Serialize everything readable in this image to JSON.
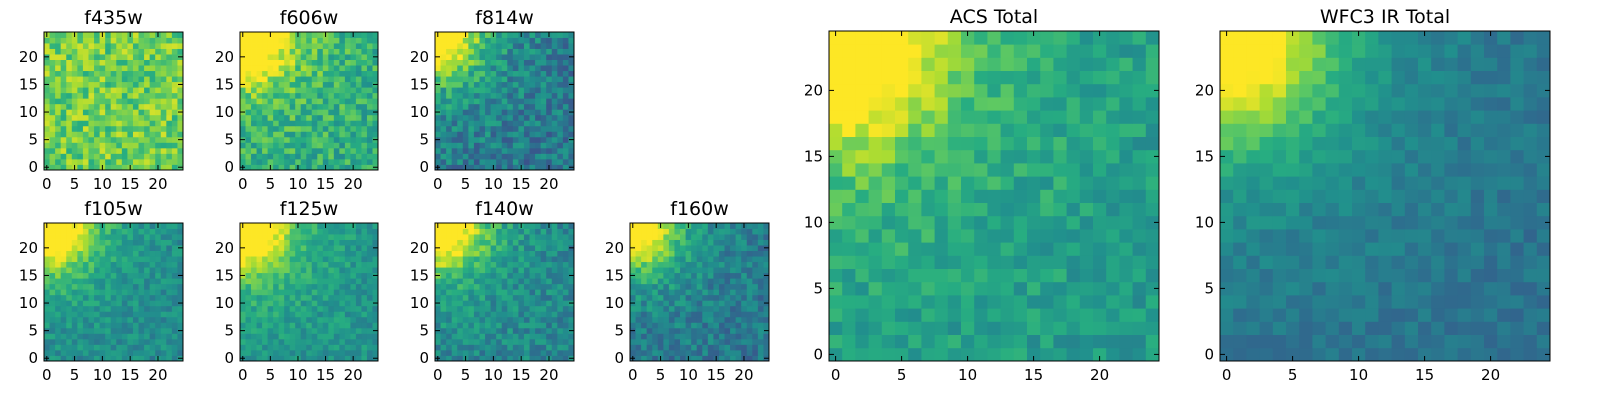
{
  "chart_data": [
    {
      "type": "heatmap",
      "title": "f435w",
      "xlim": [
        -0.5,
        24.5
      ],
      "ylim": [
        -0.5,
        24.5
      ],
      "xticks": [
        0,
        5,
        10,
        15,
        20
      ],
      "xtick_labels": [
        "0",
        "5",
        "10",
        "15",
        "20"
      ],
      "yticks": [
        0,
        5,
        10,
        15,
        20
      ],
      "ytick_labels": [
        "0",
        "5",
        "10",
        "15",
        "20"
      ],
      "grid_size": 25,
      "colormap": "viridis",
      "corner_peak": false,
      "mean": 0.78,
      "noise": 0.16,
      "seed": 11
    },
    {
      "type": "heatmap",
      "title": "f606w",
      "xlim": [
        -0.5,
        24.5
      ],
      "ylim": [
        -0.5,
        24.5
      ],
      "xticks": [
        0,
        5,
        10,
        15,
        20
      ],
      "xtick_labels": [
        "0",
        "5",
        "10",
        "15",
        "20"
      ],
      "yticks": [
        0,
        5,
        10,
        15,
        20
      ],
      "ytick_labels": [
        "0",
        "5",
        "10",
        "15",
        "20"
      ],
      "grid_size": 25,
      "colormap": "viridis",
      "corner_peak": true,
      "mean": 0.62,
      "noise": 0.15,
      "seed": 23
    },
    {
      "type": "heatmap",
      "title": "f814w",
      "xlim": [
        -0.5,
        24.5
      ],
      "ylim": [
        -0.5,
        24.5
      ],
      "xticks": [
        0,
        5,
        10,
        15,
        20
      ],
      "xtick_labels": [
        "0",
        "5",
        "10",
        "15",
        "20"
      ],
      "yticks": [
        0,
        5,
        10,
        15,
        20
      ],
      "ytick_labels": [
        "0",
        "5",
        "10",
        "15",
        "20"
      ],
      "grid_size": 25,
      "colormap": "viridis",
      "corner_peak": true,
      "mean": 0.4,
      "noise": 0.15,
      "seed": 37
    },
    {
      "type": "heatmap",
      "title": "f105w",
      "xlim": [
        -0.5,
        24.5
      ],
      "ylim": [
        -0.5,
        24.5
      ],
      "xticks": [
        0,
        5,
        10,
        15,
        20
      ],
      "xtick_labels": [
        "0",
        "5",
        "10",
        "15",
        "20"
      ],
      "yticks": [
        0,
        5,
        10,
        15,
        20
      ],
      "ytick_labels": [
        "0",
        "5",
        "10",
        "15",
        "20"
      ],
      "grid_size": 25,
      "colormap": "viridis",
      "corner_peak": true,
      "mean": 0.48,
      "noise": 0.1,
      "seed": 41
    },
    {
      "type": "heatmap",
      "title": "f125w",
      "xlim": [
        -0.5,
        24.5
      ],
      "ylim": [
        -0.5,
        24.5
      ],
      "xticks": [
        0,
        5,
        10,
        15,
        20
      ],
      "xtick_labels": [
        "0",
        "5",
        "10",
        "15",
        "20"
      ],
      "yticks": [
        0,
        5,
        10,
        15,
        20
      ],
      "ytick_labels": [
        "0",
        "5",
        "10",
        "15",
        "20"
      ],
      "grid_size": 25,
      "colormap": "viridis",
      "corner_peak": true,
      "mean": 0.52,
      "noise": 0.1,
      "seed": 53
    },
    {
      "type": "heatmap",
      "title": "f140w",
      "xlim": [
        -0.5,
        24.5
      ],
      "ylim": [
        -0.5,
        24.5
      ],
      "xticks": [
        0,
        5,
        10,
        15,
        20
      ],
      "xtick_labels": [
        "0",
        "5",
        "10",
        "15",
        "20"
      ],
      "yticks": [
        0,
        5,
        10,
        15,
        20
      ],
      "ytick_labels": [
        "0",
        "5",
        "10",
        "15",
        "20"
      ],
      "grid_size": 25,
      "colormap": "viridis",
      "corner_peak": true,
      "mean": 0.46,
      "noise": 0.12,
      "seed": 67
    },
    {
      "type": "heatmap",
      "title": "f160w",
      "xlim": [
        -0.5,
        24.5
      ],
      "ylim": [
        -0.5,
        24.5
      ],
      "xticks": [
        0,
        5,
        10,
        15,
        20
      ],
      "xtick_labels": [
        "0",
        "5",
        "10",
        "15",
        "20"
      ],
      "yticks": [
        0,
        5,
        10,
        15,
        20
      ],
      "ytick_labels": [
        "0",
        "5",
        "10",
        "15",
        "20"
      ],
      "grid_size": 25,
      "colormap": "viridis",
      "corner_peak": true,
      "mean": 0.4,
      "noise": 0.12,
      "seed": 79
    },
    {
      "type": "heatmap",
      "title": "ACS Total",
      "xlim": [
        -0.5,
        24.5
      ],
      "ylim": [
        -0.5,
        24.5
      ],
      "xticks": [
        0,
        5,
        10,
        15,
        20
      ],
      "xtick_labels": [
        "0",
        "5",
        "10",
        "15",
        "20"
      ],
      "yticks": [
        0,
        5,
        10,
        15,
        20
      ],
      "ytick_labels": [
        "0",
        "5",
        "10",
        "15",
        "20"
      ],
      "grid_size": 25,
      "colormap": "viridis",
      "corner_peak": true,
      "mean": 0.55,
      "noise": 0.1,
      "seed": 83
    },
    {
      "type": "heatmap",
      "title": "WFC3 IR Total",
      "xlim": [
        -0.5,
        24.5
      ],
      "ylim": [
        -0.5,
        24.5
      ],
      "xticks": [
        0,
        5,
        10,
        15,
        20
      ],
      "xtick_labels": [
        "0",
        "5",
        "10",
        "15",
        "20"
      ],
      "yticks": [
        0,
        5,
        10,
        15,
        20
      ],
      "ytick_labels": [
        "0",
        "5",
        "10",
        "15",
        "20"
      ],
      "grid_size": 25,
      "colormap": "viridis",
      "corner_peak": true,
      "mean": 0.38,
      "noise": 0.06,
      "seed": 97
    }
  ]
}
